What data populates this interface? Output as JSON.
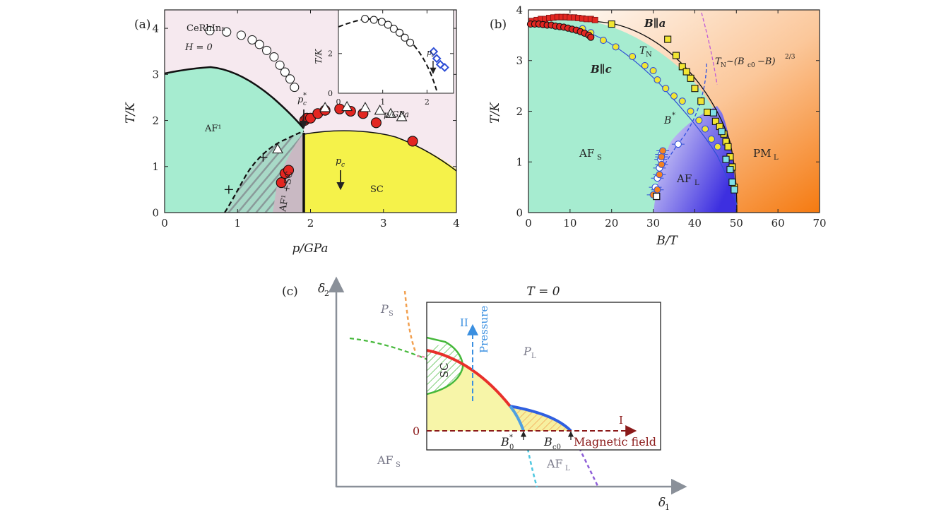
{
  "colors": {
    "af_green": "#a6ecd0",
    "sc_yellow": "#f5f24a",
    "mixed_gray": "#c9b9c3",
    "pink_bg": "#f6e9ef",
    "red_point": "#e32621",
    "yellow_point": "#f2e532",
    "blue_line": "#2f4fd6",
    "orange_pm": "#f58220",
    "afl_blue": "#4d3fe0",
    "c_red": "#e8302a",
    "c_blue": "#2f5fe0",
    "c_green": "#45b83a",
    "c_dark_red": "#8b1a1a",
    "c_light_blue": "#4fc7e0",
    "c_purple": "#8f5fd8",
    "c_orange": "#f2a050",
    "c_pressure": "#3a8fe0",
    "c_pale_yellow": "#f7f5a8"
  },
  "chart_data": [
    {
      "panel": "(a)",
      "type": "scatter",
      "title": "",
      "xlabel": "p/GPa",
      "ylabel": "T/K",
      "xlim": [
        0,
        4
      ],
      "ylim": [
        0,
        4.4
      ],
      "xticks": [
        "0",
        "1",
        "2",
        "3",
        "4"
      ],
      "yticks": [
        "0",
        "1",
        "2",
        "3",
        "4"
      ],
      "annotations": {
        "compound": "CeRhIn₅",
        "field": "H = 0",
        "af_region": "AF¹",
        "mixed_region": "AF¹ +SC",
        "sc_region": "SC",
        "pc_star_label": "p",
        "pc_star_sub": "c",
        "pc_star_sup": "*",
        "pc_label": "p",
        "pc_sub": "c"
      },
      "series": [
        {
          "name": "T_N open circles",
          "marker": "circle-open",
          "x": [
            0.62,
            0.85,
            1.05,
            1.2,
            1.3,
            1.4,
            1.5,
            1.58,
            1.65,
            1.72,
            1.78
          ],
          "y": [
            3.95,
            3.92,
            3.85,
            3.75,
            3.65,
            3.52,
            3.38,
            3.2,
            3.05,
            2.9,
            2.72
          ]
        },
        {
          "name": "T_c red dots",
          "marker": "circle-red",
          "x": [
            1.6,
            1.65,
            1.7,
            1.92,
            1.95,
            2.0,
            2.1,
            2.2,
            2.4,
            2.55,
            2.72,
            2.9,
            3.4
          ],
          "y": [
            0.65,
            0.85,
            0.92,
            2.0,
            2.05,
            2.05,
            2.15,
            2.22,
            2.25,
            2.2,
            2.15,
            1.95,
            1.55
          ]
        },
        {
          "name": "triangles",
          "marker": "triangle-open",
          "x": [
            1.55,
            2.2,
            2.5,
            2.75,
            2.95,
            3.1,
            3.25
          ],
          "y": [
            1.38,
            2.28,
            2.3,
            2.28,
            2.22,
            2.15,
            2.08
          ]
        },
        {
          "name": "crosses",
          "marker": "plus",
          "x": [
            0.88,
            1.35
          ],
          "y": [
            0.5,
            1.2
          ]
        }
      ],
      "inset": {
        "xlabel": "p/GPa",
        "ylabel": "T/K",
        "xlim": [
          0,
          2.6
        ],
        "ylim": [
          0,
          4.2
        ],
        "xticks": [
          "0",
          "1",
          "2"
        ],
        "yticks": [
          "0",
          "2"
        ],
        "pc_label": "p",
        "pc_sub": "c",
        "open_circles": {
          "x": [
            0.6,
            0.8,
            0.98,
            1.12,
            1.25,
            1.38,
            1.5,
            1.62
          ],
          "y": [
            3.75,
            3.7,
            3.6,
            3.45,
            3.25,
            3.05,
            2.8,
            2.55
          ]
        },
        "open_diamonds": {
          "x": [
            2.15,
            2.22,
            2.3,
            2.4
          ],
          "y": [
            2.1,
            1.75,
            1.45,
            1.3
          ]
        }
      }
    },
    {
      "panel": "(b)",
      "type": "scatter",
      "title": "",
      "xlabel": "B/T",
      "ylabel": "T/K",
      "xlim": [
        0,
        70
      ],
      "ylim": [
        0,
        4
      ],
      "xticks": [
        "0",
        "10",
        "20",
        "30",
        "40",
        "50",
        "60",
        "70"
      ],
      "yticks": [
        "0",
        "1",
        "2",
        "3",
        "4"
      ],
      "annotations": {
        "b_para_a": "B∥a",
        "b_para_c": "B∥c",
        "tn": "T",
        "tn_sub": "N",
        "tn_law": "T",
        "tn_law_sub": "N",
        "tn_law_rest": "~(B",
        "tn_law_sub2": "c0",
        "tn_law_end": "−B)",
        "tn_law_exp": "2/3",
        "b_star": "B",
        "b_star_sup": "*",
        "afs": "AF",
        "afs_sub": "S",
        "afl": "AF",
        "afl_sub": "L",
        "pml": "PM",
        "pml_sub": "L"
      },
      "series": [
        {
          "name": "B∥a yellow squares",
          "marker": "square-yellow",
          "x": [
            20,
            33.5,
            35.5,
            37,
            38,
            39,
            40,
            41.5,
            43,
            45,
            46,
            47,
            47.5,
            48,
            48.5,
            49,
            49.5
          ],
          "y": [
            3.72,
            3.42,
            3.1,
            2.88,
            2.78,
            2.65,
            2.45,
            2.2,
            1.98,
            1.8,
            1.7,
            1.55,
            1.4,
            1.3,
            1.1,
            0.9,
            0.5
          ]
        },
        {
          "name": "B∥a cyan squares",
          "marker": "square-cyan",
          "x": [
            44.5,
            46.5,
            47.5,
            48.5,
            49.0,
            49.5
          ],
          "y": [
            1.97,
            1.6,
            1.05,
            0.85,
            0.6,
            0.45
          ]
        },
        {
          "name": "B∥c yellow circles",
          "marker": "circle-yellow",
          "x": [
            13,
            15,
            18,
            21,
            25,
            28,
            30,
            31,
            33,
            35,
            37,
            39,
            41,
            42.5,
            44,
            45.5
          ],
          "y": [
            3.63,
            3.55,
            3.4,
            3.27,
            3.08,
            2.9,
            2.8,
            2.62,
            2.45,
            2.3,
            2.2,
            2.0,
            1.82,
            1.65,
            1.45,
            1.3
          ]
        },
        {
          "name": "red squares",
          "marker": "square-red",
          "x": [
            0.8,
            2,
            3,
            4,
            5,
            6,
            7,
            8,
            9,
            10,
            11,
            12,
            13,
            14,
            15,
            16
          ],
          "y": [
            3.78,
            3.8,
            3.82,
            3.82,
            3.84,
            3.85,
            3.86,
            3.86,
            3.86,
            3.85,
            3.85,
            3.84,
            3.83,
            3.82,
            3.82,
            3.8
          ]
        },
        {
          "name": "red circles",
          "marker": "circle-red",
          "x": [
            0.5,
            1.5,
            2.5,
            3.5,
            4.5,
            5.5,
            6.5,
            7.5,
            8.5,
            9.5,
            10.5,
            11.5,
            12.5,
            13.5,
            14.5,
            15
          ],
          "y": [
            3.72,
            3.72,
            3.72,
            3.71,
            3.7,
            3.7,
            3.68,
            3.67,
            3.66,
            3.64,
            3.62,
            3.6,
            3.57,
            3.54,
            3.5,
            3.46
          ]
        },
        {
          "name": "B* white circles",
          "marker": "circle-white",
          "x": [
            30.5,
            31,
            31.5,
            31.8,
            32,
            36
          ],
          "y": [
            0.5,
            0.68,
            0.88,
            1.05,
            1.15,
            1.35
          ]
        },
        {
          "name": "B* orange circles",
          "marker": "circle-orange",
          "x": [
            30,
            31,
            31.5,
            32,
            32,
            32.3
          ],
          "y": [
            0.35,
            0.45,
            0.75,
            0.95,
            1.1,
            1.22
          ]
        },
        {
          "name": "black square",
          "marker": "square-open",
          "x": [
            30.8
          ],
          "y": [
            0.32
          ]
        }
      ]
    },
    {
      "panel": "(c)",
      "type": "schematic",
      "title": "T = 0",
      "xlabel": "δ",
      "xlabel_sub": "1",
      "ylabel": "δ",
      "ylabel_sub": "2",
      "labels": {
        "ps": "P",
        "ps_sub": "S",
        "pl": "P",
        "pl_sub": "L",
        "afs": "AF",
        "afs_sub": "S",
        "afl": "AF",
        "afl_sub": "L",
        "sc": "SC",
        "pressure": "Pressure",
        "pressure_roman": "II",
        "field_roman": "I",
        "field": "Magnetic field",
        "zero": "0",
        "b0": "B",
        "b0_sub": "0",
        "b0_sup": "*",
        "bc0": "B",
        "bc0_sub": "c0"
      }
    }
  ]
}
